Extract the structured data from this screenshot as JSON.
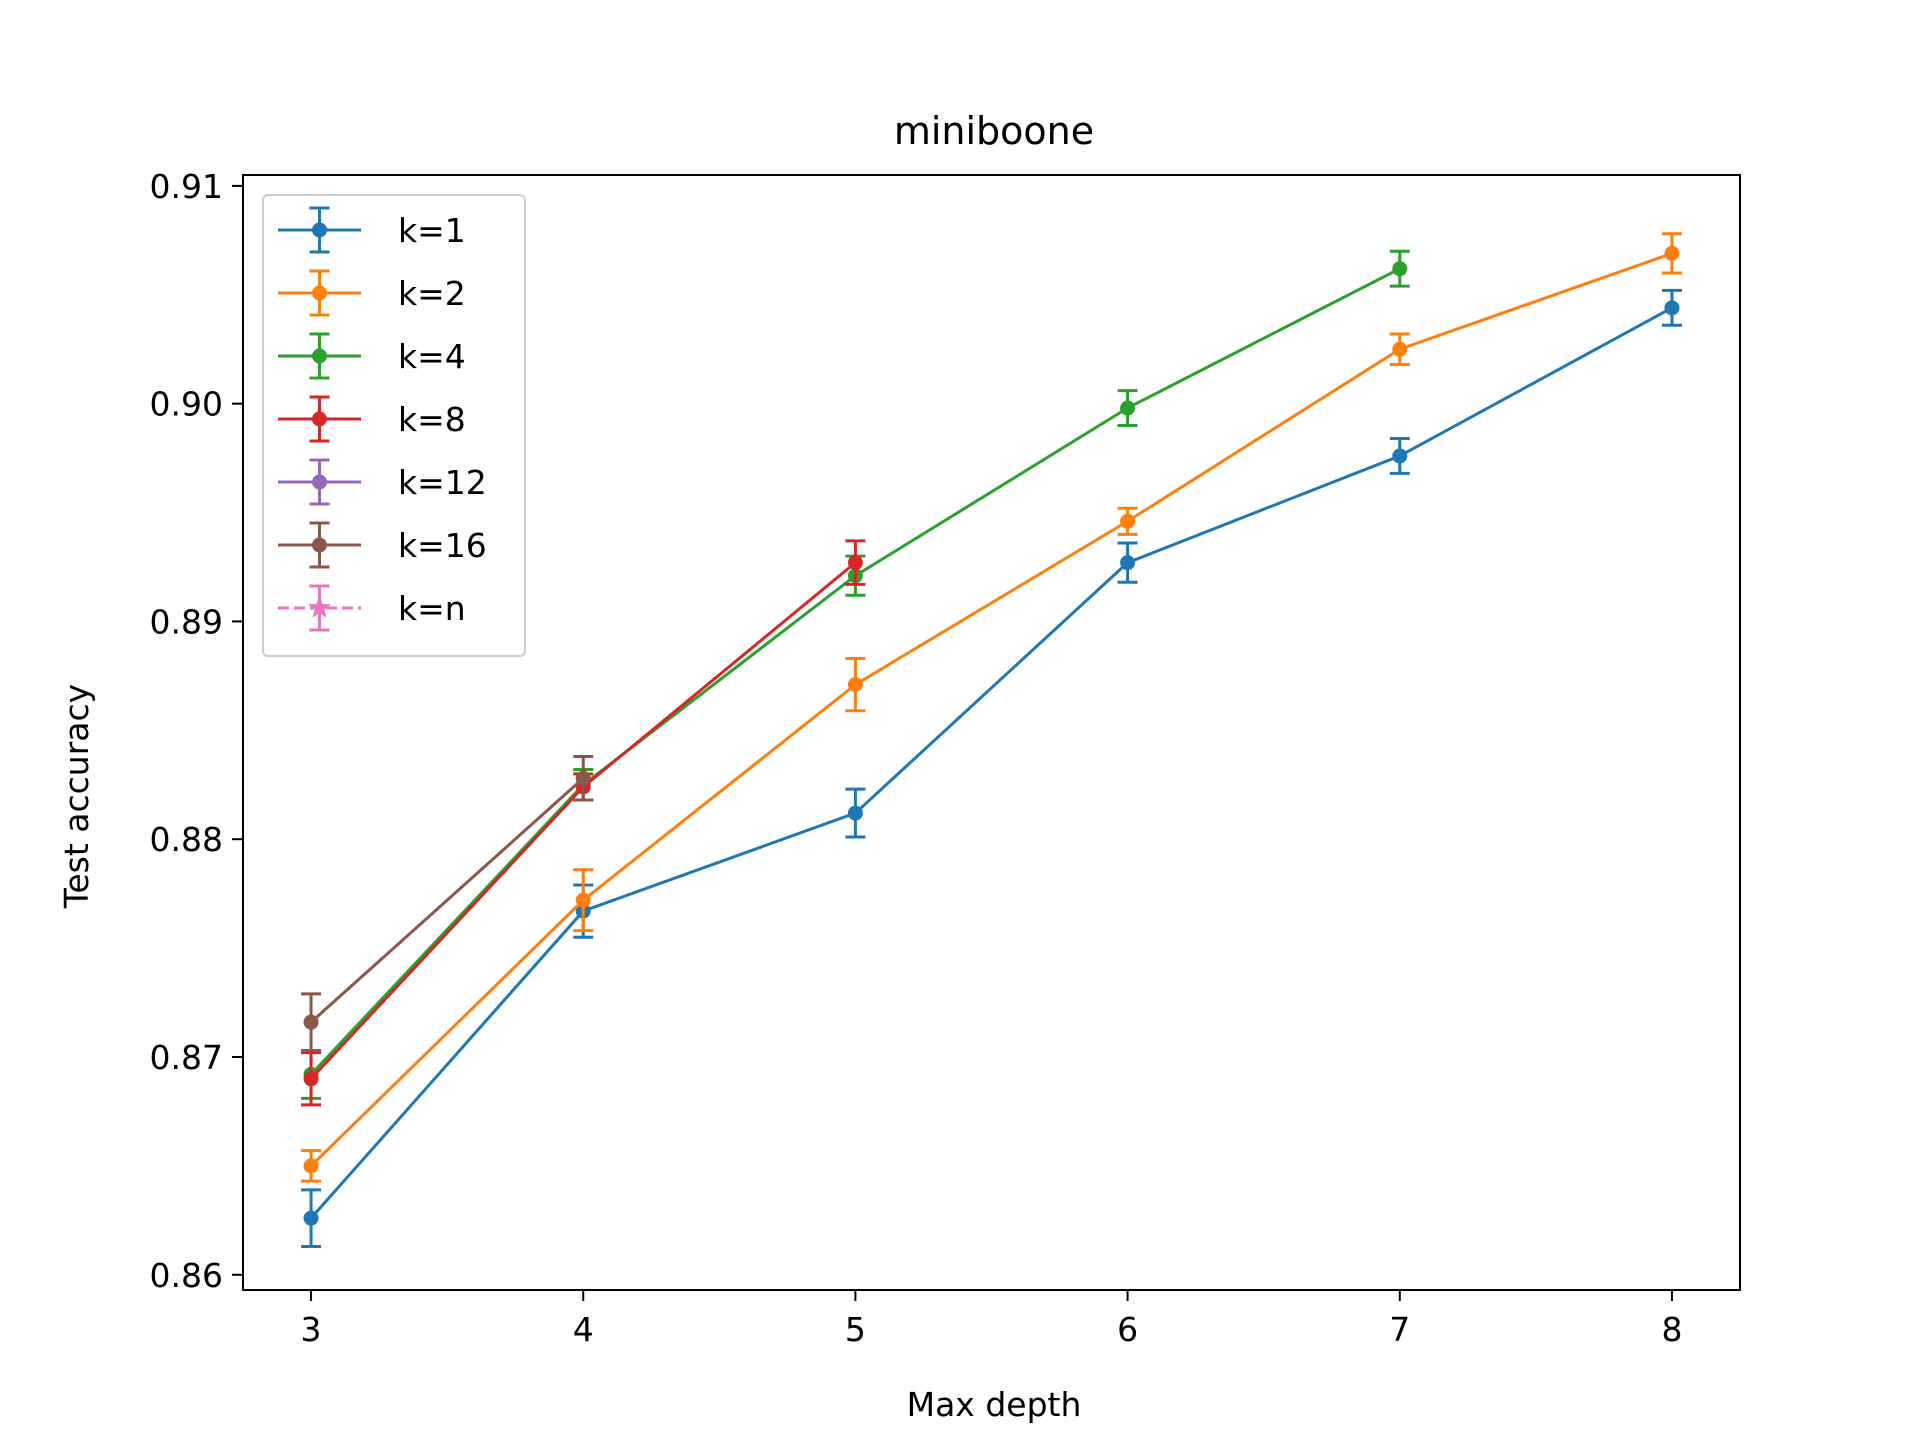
{
  "chart_data": {
    "type": "line",
    "title": "miniboone",
    "xlabel": "Max depth",
    "ylabel": "Test accuracy",
    "xlim": [
      2.75,
      8.25
    ],
    "ylim": [
      0.8593,
      0.9105
    ],
    "x_ticks": [
      3,
      4,
      5,
      6,
      7,
      8
    ],
    "x_tick_labels": [
      "3",
      "4",
      "5",
      "6",
      "7",
      "8"
    ],
    "y_ticks": [
      0.86,
      0.87,
      0.88,
      0.89,
      0.9,
      0.91
    ],
    "y_tick_labels": [
      "0.86",
      "0.87",
      "0.88",
      "0.89",
      "0.90",
      "0.91"
    ],
    "grid": false,
    "legend_position": "top-left",
    "series": [
      {
        "name": "k=1",
        "color": "#1f77b4",
        "marker": "circle",
        "linestyle": "solid",
        "x": [
          3,
          4,
          5,
          6,
          7,
          8
        ],
        "y": [
          0.8626,
          0.8767,
          0.8812,
          0.8927,
          0.8976,
          0.9044
        ],
        "err": [
          0.0013,
          0.0012,
          0.0011,
          0.0009,
          0.0008,
          0.0008
        ]
      },
      {
        "name": "k=2",
        "color": "#ff7f0e",
        "marker": "circle",
        "linestyle": "solid",
        "x": [
          3,
          4,
          5,
          6,
          7,
          8
        ],
        "y": [
          0.865,
          0.8772,
          0.8871,
          0.8946,
          0.9025,
          0.9069
        ],
        "err": [
          0.0007,
          0.0014,
          0.0012,
          0.0006,
          0.0007,
          0.0009
        ]
      },
      {
        "name": "k=4",
        "color": "#2ca02c",
        "marker": "circle",
        "linestyle": "solid",
        "x": [
          3,
          4,
          5,
          6,
          7
        ],
        "y": [
          0.8692,
          0.8825,
          0.8921,
          0.8998,
          0.9062
        ],
        "err": [
          0.0011,
          0.0007,
          0.0009,
          0.0008,
          0.0008
        ]
      },
      {
        "name": "k=8",
        "color": "#d62728",
        "marker": "circle",
        "linestyle": "solid",
        "x": [
          3,
          4,
          5
        ],
        "y": [
          0.869,
          0.8824,
          0.8927
        ],
        "err": [
          0.0012,
          0.0006,
          0.001
        ]
      },
      {
        "name": "k=12",
        "color": "#9467bd",
        "marker": "circle",
        "linestyle": "solid",
        "x": [],
        "y": [],
        "err": []
      },
      {
        "name": "k=16",
        "color": "#8c564b",
        "marker": "circle",
        "linestyle": "solid",
        "x": [
          3,
          4
        ],
        "y": [
          0.8716,
          0.8828
        ],
        "err": [
          0.0013,
          0.001
        ]
      },
      {
        "name": "k=n",
        "color": "#e377c2",
        "marker": "star",
        "linestyle": "dashed",
        "x": [],
        "y": [],
        "err": []
      }
    ]
  }
}
